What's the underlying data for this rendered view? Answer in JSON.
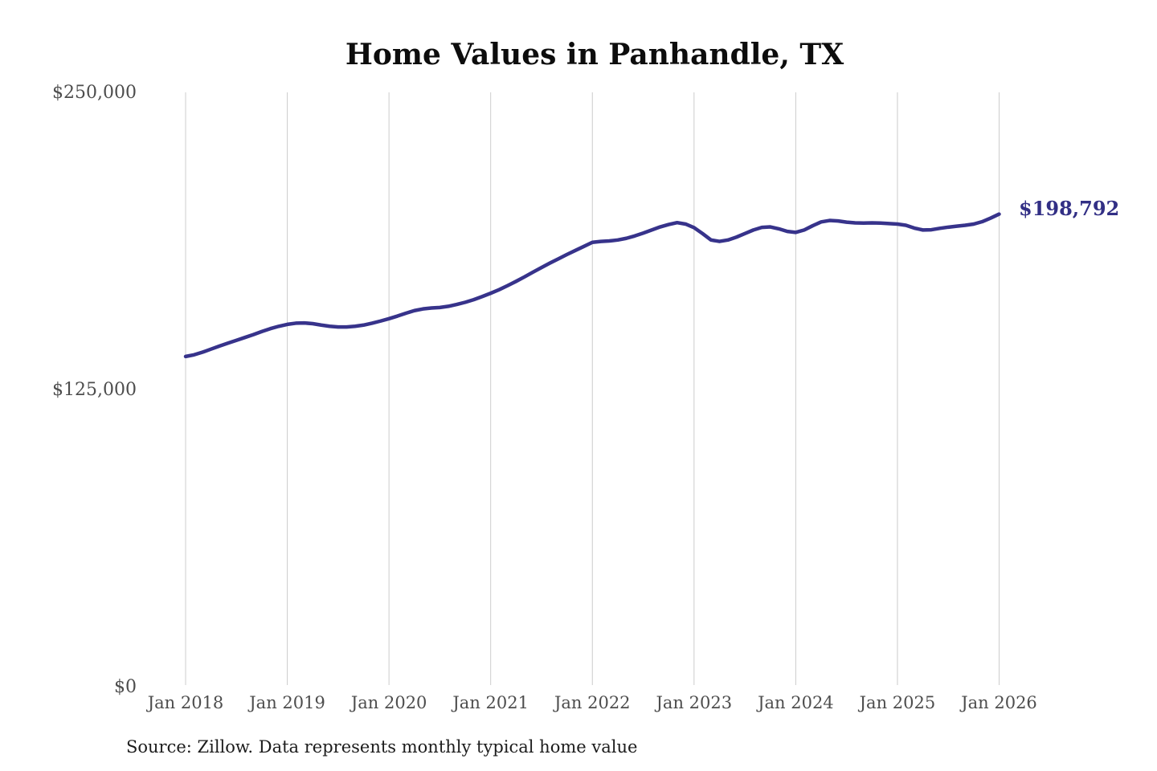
{
  "chart_data": {
    "type": "line",
    "title": "Home Values in Panhandle, TX",
    "source_note": "Source: Zillow. Data represents monthly typical home value",
    "end_label": "$198,792",
    "end_value": 198792,
    "series_name": "Monthly typical home value",
    "frequency": "monthly",
    "start_month": "2018-01",
    "end_month": "2026-01",
    "x_tick_labels": [
      "Jan 2018",
      "Jan 2019",
      "Jan 2020",
      "Jan 2021",
      "Jan 2022",
      "Jan 2023",
      "Jan 2024",
      "Jan 2025",
      "Jan 2026"
    ],
    "y_ticks": [
      {
        "label": "$0",
        "value": 0
      },
      {
        "label": "$125,000",
        "value": 125000
      },
      {
        "label": "$250,000",
        "value": 250000
      }
    ],
    "ylim": [
      0,
      250000
    ],
    "grid": "vertical-only",
    "legend": "none",
    "colors": {
      "line": "#37338b",
      "annotation": "#322f85",
      "grid": "#cccccc",
      "axis_text": "#4d4d4d",
      "title_text": "#0d0d0d"
    },
    "values": [
      138900,
      139600,
      140700,
      142000,
      143300,
      144500,
      145700,
      146900,
      148100,
      149400,
      150600,
      151600,
      152400,
      152900,
      153000,
      152700,
      152100,
      151600,
      151300,
      151300,
      151600,
      152100,
      152900,
      153800,
      154800,
      155900,
      157100,
      158200,
      158900,
      159300,
      159500,
      160000,
      160800,
      161700,
      162800,
      164100,
      165500,
      167000,
      168700,
      170500,
      172400,
      174400,
      176300,
      178200,
      180000,
      181800,
      183500,
      185200,
      186900,
      187300,
      187500,
      187900,
      188600,
      189600,
      190800,
      192100,
      193400,
      194400,
      195200,
      194600,
      193100,
      190600,
      187900,
      187300,
      187900,
      189100,
      190600,
      192100,
      193200,
      193400,
      192600,
      191500,
      191100,
      192100,
      193900,
      195500,
      196100,
      195900,
      195400,
      195100,
      195000,
      195100,
      195000,
      194800,
      194600,
      194100,
      192900,
      192100,
      192200,
      192800,
      193300,
      193700,
      194100,
      194600,
      195600,
      197100,
      198792
    ]
  }
}
